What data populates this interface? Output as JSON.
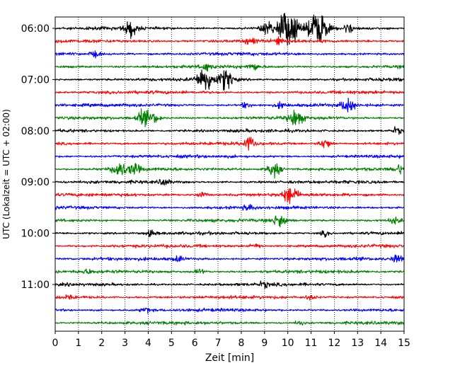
{
  "chart_data": {
    "type": "line",
    "title": "",
    "xlabel": "Zeit  [min]",
    "ylabel": "UTC (Lokalzeit = UTC + 02:00)",
    "xlim": [
      0,
      15
    ],
    "x_ticks": [
      "0",
      "1",
      "2",
      "3",
      "4",
      "5",
      "6",
      "7",
      "8",
      "9",
      "10",
      "11",
      "12",
      "13",
      "14",
      "15"
    ],
    "y_ticks": [
      "06:00",
      "07:00",
      "08:00",
      "09:00",
      "10:00",
      "11:00"
    ],
    "grid": "vertical-dotted",
    "trace_interval_minutes": 15,
    "colors": [
      "#000000",
      "#ff0000",
      "#0000ff",
      "#008000"
    ],
    "series": [
      {
        "start": "06:00",
        "events": [
          {
            "t": 3.25,
            "a": 1.2
          },
          {
            "t": 9.1,
            "a": 1.0
          },
          {
            "t": 9.95,
            "a": 2.6
          },
          {
            "t": 10.3,
            "a": 0.8
          },
          {
            "t": 11.2,
            "a": 2.2
          },
          {
            "t": 11.5,
            "a": 1.0
          },
          {
            "t": 12.6,
            "a": 0.7
          }
        ]
      },
      {
        "start": "06:15",
        "events": [
          {
            "t": 8.4,
            "a": 0.5
          },
          {
            "t": 9.6,
            "a": 0.5
          }
        ]
      },
      {
        "start": "06:30",
        "events": [
          {
            "t": 1.7,
            "a": 0.4
          }
        ]
      },
      {
        "start": "06:45",
        "events": [
          {
            "t": 6.5,
            "a": 0.5
          },
          {
            "t": 8.5,
            "a": 0.5
          }
        ]
      },
      {
        "start": "07:00",
        "events": [
          {
            "t": 6.45,
            "a": 2.0
          },
          {
            "t": 7.35,
            "a": 1.6
          }
        ]
      },
      {
        "start": "07:15",
        "events": []
      },
      {
        "start": "07:30",
        "events": [
          {
            "t": 8.2,
            "a": 0.4
          },
          {
            "t": 9.7,
            "a": 0.4
          },
          {
            "t": 12.6,
            "a": 1.1
          }
        ]
      },
      {
        "start": "07:45",
        "events": [
          {
            "t": 3.8,
            "a": 1.2
          },
          {
            "t": 4.3,
            "a": 0.7
          },
          {
            "t": 10.35,
            "a": 1.3
          }
        ]
      },
      {
        "start": "08:00",
        "events": [
          {
            "t": 14.7,
            "a": 0.5
          }
        ]
      },
      {
        "start": "08:15",
        "events": [
          {
            "t": 8.35,
            "a": 1.0
          },
          {
            "t": 11.6,
            "a": 0.8
          }
        ]
      },
      {
        "start": "08:30",
        "events": []
      },
      {
        "start": "08:45",
        "events": [
          {
            "t": 2.75,
            "a": 1.3
          },
          {
            "t": 3.4,
            "a": 0.8
          },
          {
            "t": 9.4,
            "a": 1.2
          },
          {
            "t": 14.8,
            "a": 0.6
          }
        ]
      },
      {
        "start": "09:00",
        "events": [
          {
            "t": 4.7,
            "a": 0.5
          }
        ]
      },
      {
        "start": "09:15",
        "events": [
          {
            "t": 6.3,
            "a": 0.5
          },
          {
            "t": 10.1,
            "a": 1.4
          }
        ]
      },
      {
        "start": "09:30",
        "events": [
          {
            "t": 8.3,
            "a": 0.4
          }
        ]
      },
      {
        "start": "09:45",
        "events": [
          {
            "t": 9.65,
            "a": 1.1
          },
          {
            "t": 14.6,
            "a": 0.5
          }
        ]
      },
      {
        "start": "10:00",
        "events": [
          {
            "t": 4.1,
            "a": 0.4
          },
          {
            "t": 11.6,
            "a": 0.4
          }
        ]
      },
      {
        "start": "10:15",
        "events": [
          {
            "t": 8.6,
            "a": 0.4
          }
        ]
      },
      {
        "start": "10:30",
        "events": [
          {
            "t": 5.3,
            "a": 0.4
          },
          {
            "t": 14.7,
            "a": 0.6
          }
        ]
      },
      {
        "start": "10:45",
        "events": [
          {
            "t": 1.4,
            "a": 0.3
          },
          {
            "t": 6.2,
            "a": 0.4
          }
        ]
      },
      {
        "start": "11:00",
        "events": [
          {
            "t": 9.0,
            "a": 0.4
          }
        ]
      },
      {
        "start": "11:15",
        "events": [
          {
            "t": 0.6,
            "a": 0.3
          },
          {
            "t": 11.0,
            "a": 0.3
          }
        ]
      },
      {
        "start": "11:30",
        "events": [
          {
            "t": 3.9,
            "a": 0.4
          }
        ]
      },
      {
        "start": "11:45",
        "events": [
          {
            "t": 10.5,
            "a": 0.3
          }
        ]
      }
    ]
  }
}
